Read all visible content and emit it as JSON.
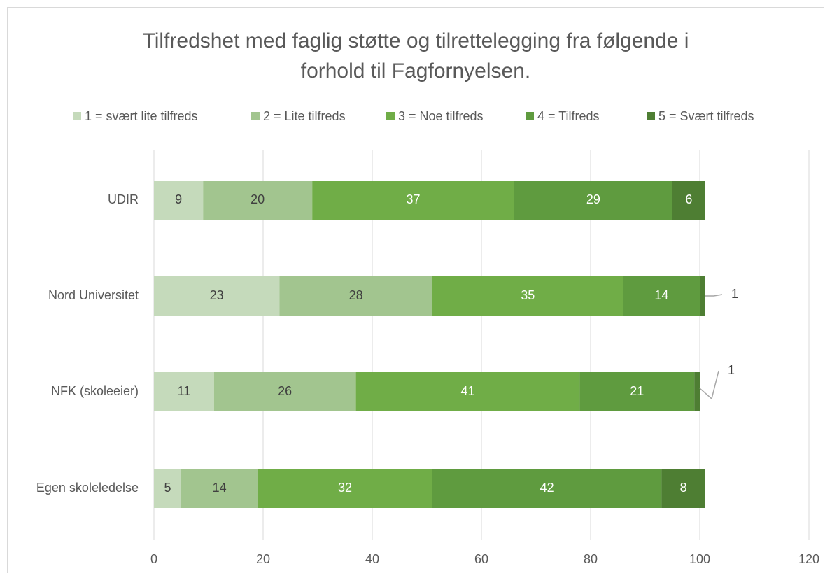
{
  "chart_data": {
    "type": "bar",
    "orientation": "horizontal",
    "stacked": true,
    "title": "Tilfredshet med faglig støtte og tilrettelegging fra følgende i forhold til Fagfornyelsen.",
    "categories": [
      "UDIR",
      "Nord Universitet",
      "NFK (skoleeier)",
      "Egen skoleledelse"
    ],
    "series": [
      {
        "name": "1 = svært lite tilfreds",
        "color": "#c5dabb",
        "values": [
          9,
          23,
          11,
          5
        ]
      },
      {
        "name": "2 = Lite tilfreds",
        "color": "#a2c58f",
        "values": [
          20,
          28,
          26,
          14
        ]
      },
      {
        "name": "3 = Noe tilfreds",
        "color": "#70ad47",
        "values": [
          37,
          35,
          41,
          32
        ]
      },
      {
        "name": "4 = Tilfreds",
        "color": "#5f9b3f",
        "values": [
          29,
          14,
          21,
          42
        ]
      },
      {
        "name": "5 = Svært tilfreds",
        "color": "#4e7e33",
        "values": [
          6,
          1,
          1,
          8
        ]
      }
    ],
    "xlim": [
      0,
      120
    ],
    "xticks": [
      0,
      20,
      40,
      60,
      80,
      100,
      120
    ],
    "grid": true,
    "legend": "top"
  }
}
